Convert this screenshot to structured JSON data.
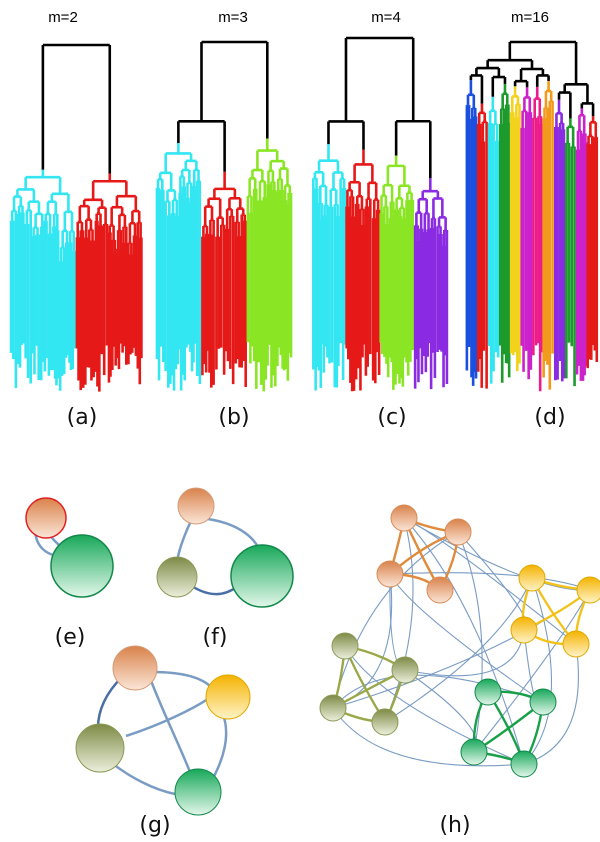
{
  "panels": {
    "a": {
      "label": "(a)",
      "title": "m=2"
    },
    "b": {
      "label": "(b)",
      "title": "m=3"
    },
    "c": {
      "label": "(c)",
      "title": "m=4"
    },
    "d": {
      "label": "(d)",
      "title": "m=16"
    },
    "e": {
      "label": "(e)"
    },
    "f": {
      "label": "(f)"
    },
    "g": {
      "label": "(g)"
    },
    "h": {
      "label": "(h)"
    }
  },
  "colors": {
    "link": "#000000",
    "cyan": "#33e6f2",
    "red": "#e61919",
    "lime": "#8ae625",
    "purple": "#8a2be2",
    "blue": "#1a4fe0",
    "green": "#1c9a2c",
    "magenta": "#cc22cc",
    "yellow": "#f2d21c",
    "orange": "#f29a1c",
    "pink": "#ec1d8a",
    "edge": "#7a9cc4",
    "node_orange": "#d98a55",
    "node_green": "#22b46a",
    "node_olive": "#8a9a55",
    "node_yellow": "#f5c21a"
  },
  "dendrograms": [
    {
      "panel": "a",
      "clusters": [
        "cyan",
        "red"
      ]
    },
    {
      "panel": "b",
      "clusters": [
        "cyan",
        "red",
        "lime"
      ]
    },
    {
      "panel": "c",
      "clusters": [
        "cyan",
        "red",
        "lime",
        "purple"
      ]
    },
    {
      "panel": "d",
      "clusters": [
        "blue",
        "red",
        "cyan",
        "green",
        "yellow",
        "magenta",
        "pink",
        "orange",
        "purple",
        "green",
        "magenta",
        "red"
      ]
    }
  ],
  "networks": [
    {
      "panel": "e",
      "communities": [
        "node_orange",
        "node_green"
      ]
    },
    {
      "panel": "f",
      "communities": [
        "node_orange",
        "node_olive",
        "node_green"
      ]
    },
    {
      "panel": "g",
      "communities": [
        "node_orange",
        "node_yellow",
        "node_olive",
        "node_green"
      ]
    },
    {
      "panel": "h",
      "communities": [
        "node_orange",
        "node_yellow",
        "node_olive",
        "node_green"
      ]
    }
  ]
}
